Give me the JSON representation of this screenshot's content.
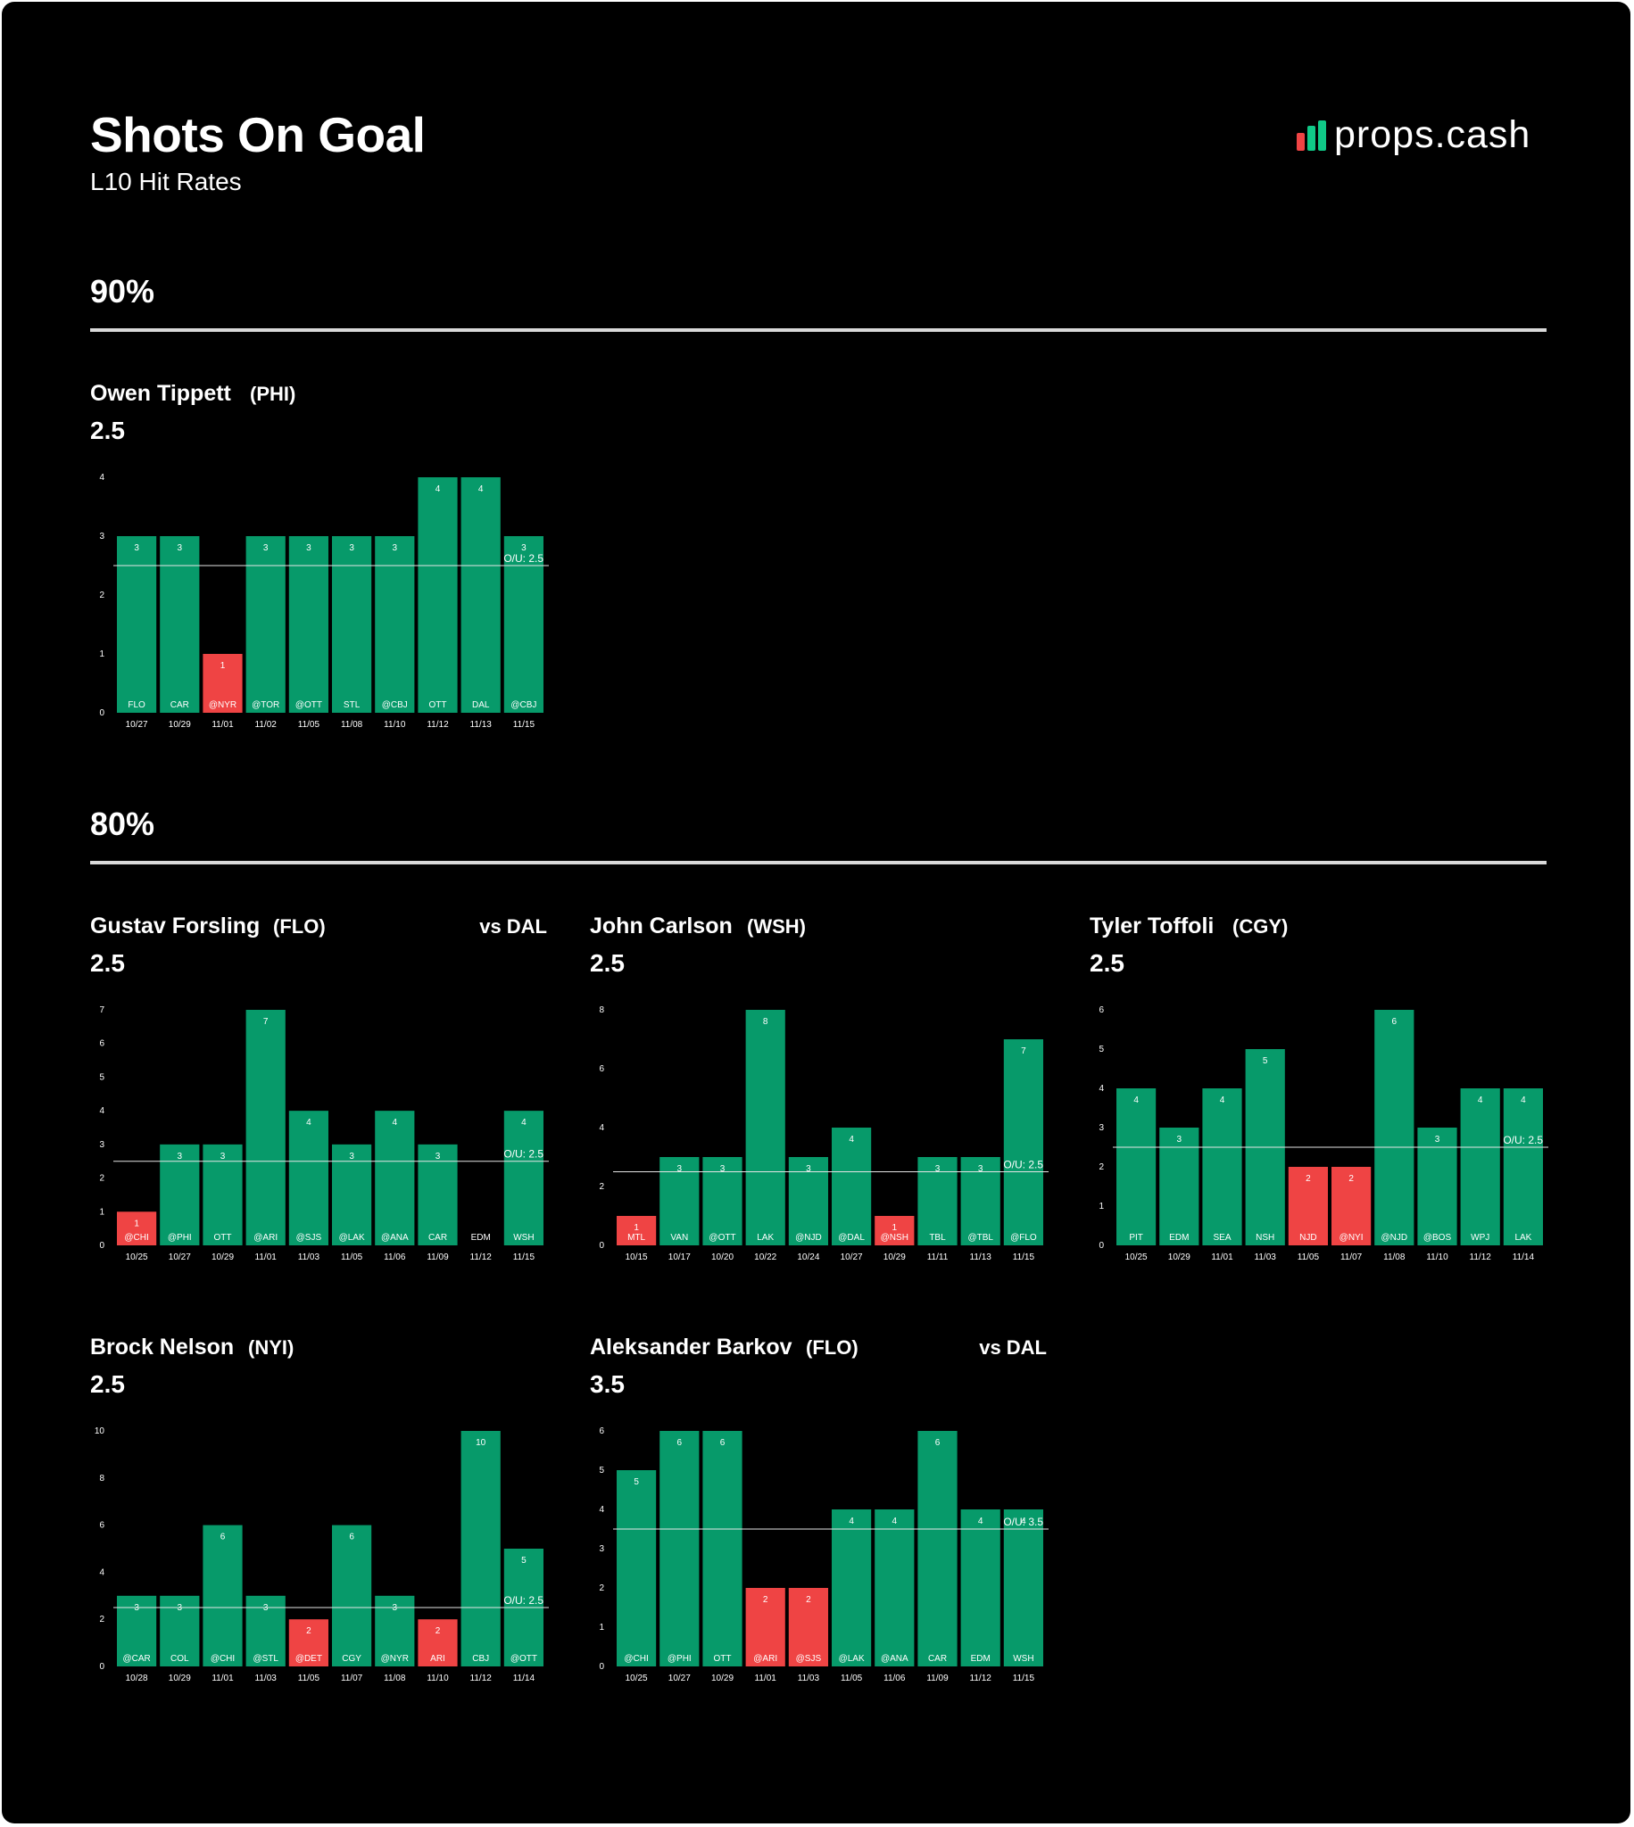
{
  "header": {
    "title": "Shots On Goal",
    "subtitle": "L10 Hit Rates",
    "brand": "props.cash",
    "brand_icon": "bar-chart-logo-icon"
  },
  "colors": {
    "background": "#000000",
    "hit": "#079a6a",
    "miss": "#ef4444",
    "text": "#ffffff",
    "rule": "#d9d9d9",
    "logo_red": "#ef4444",
    "logo_green": "#10c987"
  },
  "sections": [
    {
      "label": "90%"
    },
    {
      "label": "80%"
    }
  ],
  "players": [
    {
      "name": "Owen Tippett",
      "team": "(PHI)",
      "opponent": "",
      "line": "2.5"
    },
    {
      "name": "Gustav Forsling",
      "team": "(FLO)",
      "opponent": "vs DAL",
      "line": "2.5"
    },
    {
      "name": "John Carlson",
      "team": "(WSH)",
      "opponent": "",
      "line": "2.5"
    },
    {
      "name": "Tyler Toffoli",
      "team": "(CGY)",
      "opponent": "",
      "line": "2.5"
    },
    {
      "name": "Brock Nelson",
      "team": "(NYI)",
      "opponent": "",
      "line": "2.5"
    },
    {
      "name": "Aleksander Barkov",
      "team": "(FLO)",
      "opponent": "vs DAL",
      "line": "3.5"
    }
  ],
  "chart_data": [
    {
      "type": "bar",
      "title": "Owen Tippett (PHI)",
      "threshold": 2.5,
      "threshold_label": "O/U: 2.5",
      "ylim": [
        0,
        4
      ],
      "yticks": [
        0,
        1,
        2,
        3,
        4
      ],
      "categories": [
        "10/27",
        "10/29",
        "11/01",
        "11/02",
        "11/05",
        "11/08",
        "11/10",
        "11/12",
        "11/13",
        "11/15"
      ],
      "opponents": [
        "FLO",
        "CAR",
        "@NYR",
        "@TOR",
        "@OTT",
        "STL",
        "@CBJ",
        "OTT",
        "DAL",
        "@CBJ"
      ],
      "values": [
        3,
        3,
        1,
        3,
        3,
        3,
        3,
        4,
        4,
        3
      ]
    },
    {
      "type": "bar",
      "title": "Gustav Forsling (FLO)",
      "threshold": 2.5,
      "threshold_label": "O/U: 2.5",
      "ylim": [
        0,
        7
      ],
      "yticks": [
        0,
        1,
        2,
        3,
        4,
        5,
        6,
        7
      ],
      "categories": [
        "10/25",
        "10/27",
        "10/29",
        "11/01",
        "11/03",
        "11/05",
        "11/06",
        "11/09",
        "11/12",
        "11/15"
      ],
      "opponents": [
        "@CHI",
        "@PHI",
        "OTT",
        "@ARI",
        "@SJS",
        "@LAK",
        "@ANA",
        "CAR",
        "EDM",
        "WSH"
      ],
      "values": [
        1,
        3,
        3,
        7,
        4,
        3,
        4,
        3,
        0,
        4
      ]
    },
    {
      "type": "bar",
      "title": "John Carlson (WSH)",
      "threshold": 2.5,
      "threshold_label": "O/U: 2.5",
      "ylim": [
        0,
        8
      ],
      "yticks": [
        0,
        2,
        4,
        6,
        8
      ],
      "categories": [
        "10/15",
        "10/17",
        "10/20",
        "10/22",
        "10/24",
        "10/27",
        "10/29",
        "11/11",
        "11/13",
        "11/15"
      ],
      "opponents": [
        "MTL",
        "VAN",
        "@OTT",
        "LAK",
        "@NJD",
        "@DAL",
        "@NSH",
        "TBL",
        "@TBL",
        "@FLO"
      ],
      "values": [
        1,
        3,
        3,
        8,
        3,
        4,
        1,
        3,
        3,
        7
      ]
    },
    {
      "type": "bar",
      "title": "Tyler Toffoli (CGY)",
      "threshold": 2.5,
      "threshold_label": "O/U: 2.5",
      "ylim": [
        0,
        6
      ],
      "yticks": [
        0,
        1,
        2,
        3,
        4,
        5,
        6
      ],
      "categories": [
        "10/25",
        "10/29",
        "11/01",
        "11/03",
        "11/05",
        "11/07",
        "11/08",
        "11/10",
        "11/12",
        "11/14"
      ],
      "opponents": [
        "PIT",
        "EDM",
        "SEA",
        "NSH",
        "NJD",
        "@NYI",
        "@NJD",
        "@BOS",
        "WPJ",
        "LAK"
      ],
      "values": [
        4,
        3,
        4,
        5,
        2,
        2,
        6,
        3,
        4,
        4
      ]
    },
    {
      "type": "bar",
      "title": "Brock Nelson (NYI)",
      "threshold": 2.5,
      "threshold_label": "O/U: 2.5",
      "ylim": [
        0,
        10
      ],
      "yticks": [
        0,
        2,
        4,
        6,
        8,
        10
      ],
      "categories": [
        "10/28",
        "10/29",
        "11/01",
        "11/03",
        "11/05",
        "11/07",
        "11/08",
        "11/10",
        "11/12",
        "11/14"
      ],
      "opponents": [
        "@CAR",
        "COL",
        "@CHI",
        "@STL",
        "@DET",
        "CGY",
        "@NYR",
        "ARI",
        "CBJ",
        "@OTT"
      ],
      "values": [
        3,
        3,
        6,
        3,
        2,
        6,
        3,
        2,
        10,
        5
      ]
    },
    {
      "type": "bar",
      "title": "Aleksander Barkov (FLO)",
      "threshold": 3.5,
      "threshold_label": "O/U: 3.5",
      "ylim": [
        0,
        6
      ],
      "yticks": [
        0,
        1,
        2,
        3,
        4,
        5,
        6
      ],
      "categories": [
        "10/25",
        "10/27",
        "10/29",
        "11/01",
        "11/03",
        "11/05",
        "11/06",
        "11/09",
        "11/12",
        "11/15"
      ],
      "opponents": [
        "@CHI",
        "@PHI",
        "OTT",
        "@ARI",
        "@SJS",
        "@LAK",
        "@ANA",
        "CAR",
        "EDM",
        "WSH"
      ],
      "values": [
        5,
        6,
        6,
        2,
        2,
        4,
        4,
        6,
        4,
        4
      ]
    }
  ]
}
